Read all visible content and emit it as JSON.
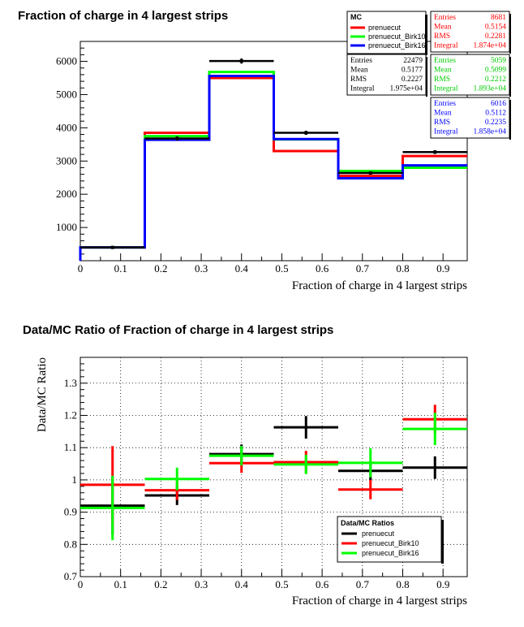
{
  "chart_data": [
    {
      "type": "histogram",
      "title": "Fraction of charge in 4 largest strips",
      "xlabel": "Fraction of charge in 4 largest strips",
      "ylabel": "",
      "xlim": [
        0,
        0.96
      ],
      "ylim": [
        0,
        6600
      ],
      "xticks": [
        "0",
        "0.1",
        "0.2",
        "0.3",
        "0.4",
        "0.5",
        "0.6",
        "0.7",
        "0.8",
        "0.9"
      ],
      "yticks": [
        "1000",
        "2000",
        "3000",
        "4000",
        "5000",
        "6000"
      ],
      "bin_edges": [
        0,
        0.16,
        0.32,
        0.48,
        0.64,
        0.8,
        0.96
      ],
      "bin_centers": [
        0.08,
        0.24,
        0.4,
        0.56,
        0.72,
        0.88
      ],
      "data": {
        "name": "",
        "color": "#000000",
        "values": [
          400,
          3680,
          6010,
          3850,
          2640,
          3270
        ],
        "errors": [
          20,
          61,
          78,
          62,
          51,
          57
        ]
      },
      "series": [
        {
          "name": "prenuecut",
          "color": "#ff0000",
          "values": [
            400,
            3850,
            5500,
            3300,
            2550,
            3150
          ]
        },
        {
          "name": "prenuecut_Birk10",
          "color": "#00ff00",
          "values": [
            400,
            3750,
            5680,
            3650,
            2700,
            2800
          ]
        },
        {
          "name": "prenuecut_Birk16",
          "color": "#0000ff",
          "values": [
            400,
            3640,
            5560,
            3660,
            2480,
            2870
          ]
        }
      ],
      "legend_title": "MC",
      "legend_position": "top-right",
      "stats": [
        {
          "color": "#000000",
          "rows": [
            [
              "Entries",
              "22479"
            ],
            [
              "Mean",
              "0.5177"
            ],
            [
              "RMS",
              "0.2227"
            ],
            [
              "Integral",
              "1.975e+04"
            ]
          ]
        },
        {
          "color": "#ff0000",
          "rows": [
            [
              "Entries",
              "8681"
            ],
            [
              "Mean",
              "0.5154"
            ],
            [
              "RMS",
              "0.2281"
            ],
            [
              "Integral",
              "1.874e+04"
            ]
          ]
        },
        {
          "color": "#00cc00",
          "rows": [
            [
              "Entries",
              "5059"
            ],
            [
              "Mean",
              "0.5099"
            ],
            [
              "RMS",
              "0.2212"
            ],
            [
              "Integral",
              "1.893e+04"
            ]
          ]
        },
        {
          "color": "#0000ff",
          "rows": [
            [
              "Entries",
              "6016"
            ],
            [
              "Mean",
              "0.5112"
            ],
            [
              "RMS",
              "0.2235"
            ],
            [
              "Integral",
              "1.858e+04"
            ]
          ]
        }
      ]
    },
    {
      "type": "ratio",
      "title": "Data/MC Ratio of Fraction of charge in 4 largest strips",
      "xlabel": "Fraction of charge in 4 largest strips",
      "ylabel": "Data/MC Ratio",
      "xlim": [
        0,
        0.96
      ],
      "ylim": [
        0.7,
        1.38
      ],
      "xticks": [
        "0",
        "0.1",
        "0.2",
        "0.3",
        "0.4",
        "0.5",
        "0.6",
        "0.7",
        "0.8",
        "0.9"
      ],
      "yticks": [
        "0.7",
        "0.8",
        "0.9",
        "1",
        "1.1",
        "1.2",
        "1.3"
      ],
      "bin_edges": [
        0,
        0.16,
        0.32,
        0.48,
        0.64,
        0.8,
        0.96
      ],
      "x": [
        0.08,
        0.24,
        0.4,
        0.56,
        0.72,
        0.88
      ],
      "series": [
        {
          "name": "prenuecut",
          "color": "#000000",
          "values": [
            0.92,
            0.952,
            1.08,
            1.163,
            1.028,
            1.038
          ],
          "errors": [
            0.09,
            0.03,
            0.03,
            0.035,
            0.03,
            0.035
          ]
        },
        {
          "name": "prenuecut_Birk10",
          "color": "#ff0000",
          "values": [
            0.985,
            0.968,
            1.052,
            1.055,
            0.97,
            1.188
          ],
          "errors": [
            0.12,
            0.03,
            0.03,
            0.035,
            0.03,
            0.045
          ]
        },
        {
          "name": "prenuecut_Birk16",
          "color": "#00ff00",
          "values": [
            0.913,
            1.003,
            1.075,
            1.048,
            1.053,
            1.158
          ],
          "errors": [
            0.1,
            0.035,
            0.03,
            0.03,
            0.045,
            0.05
          ]
        }
      ],
      "legend_title": "Data/MC Ratios",
      "legend_position": "bottom-right"
    }
  ]
}
